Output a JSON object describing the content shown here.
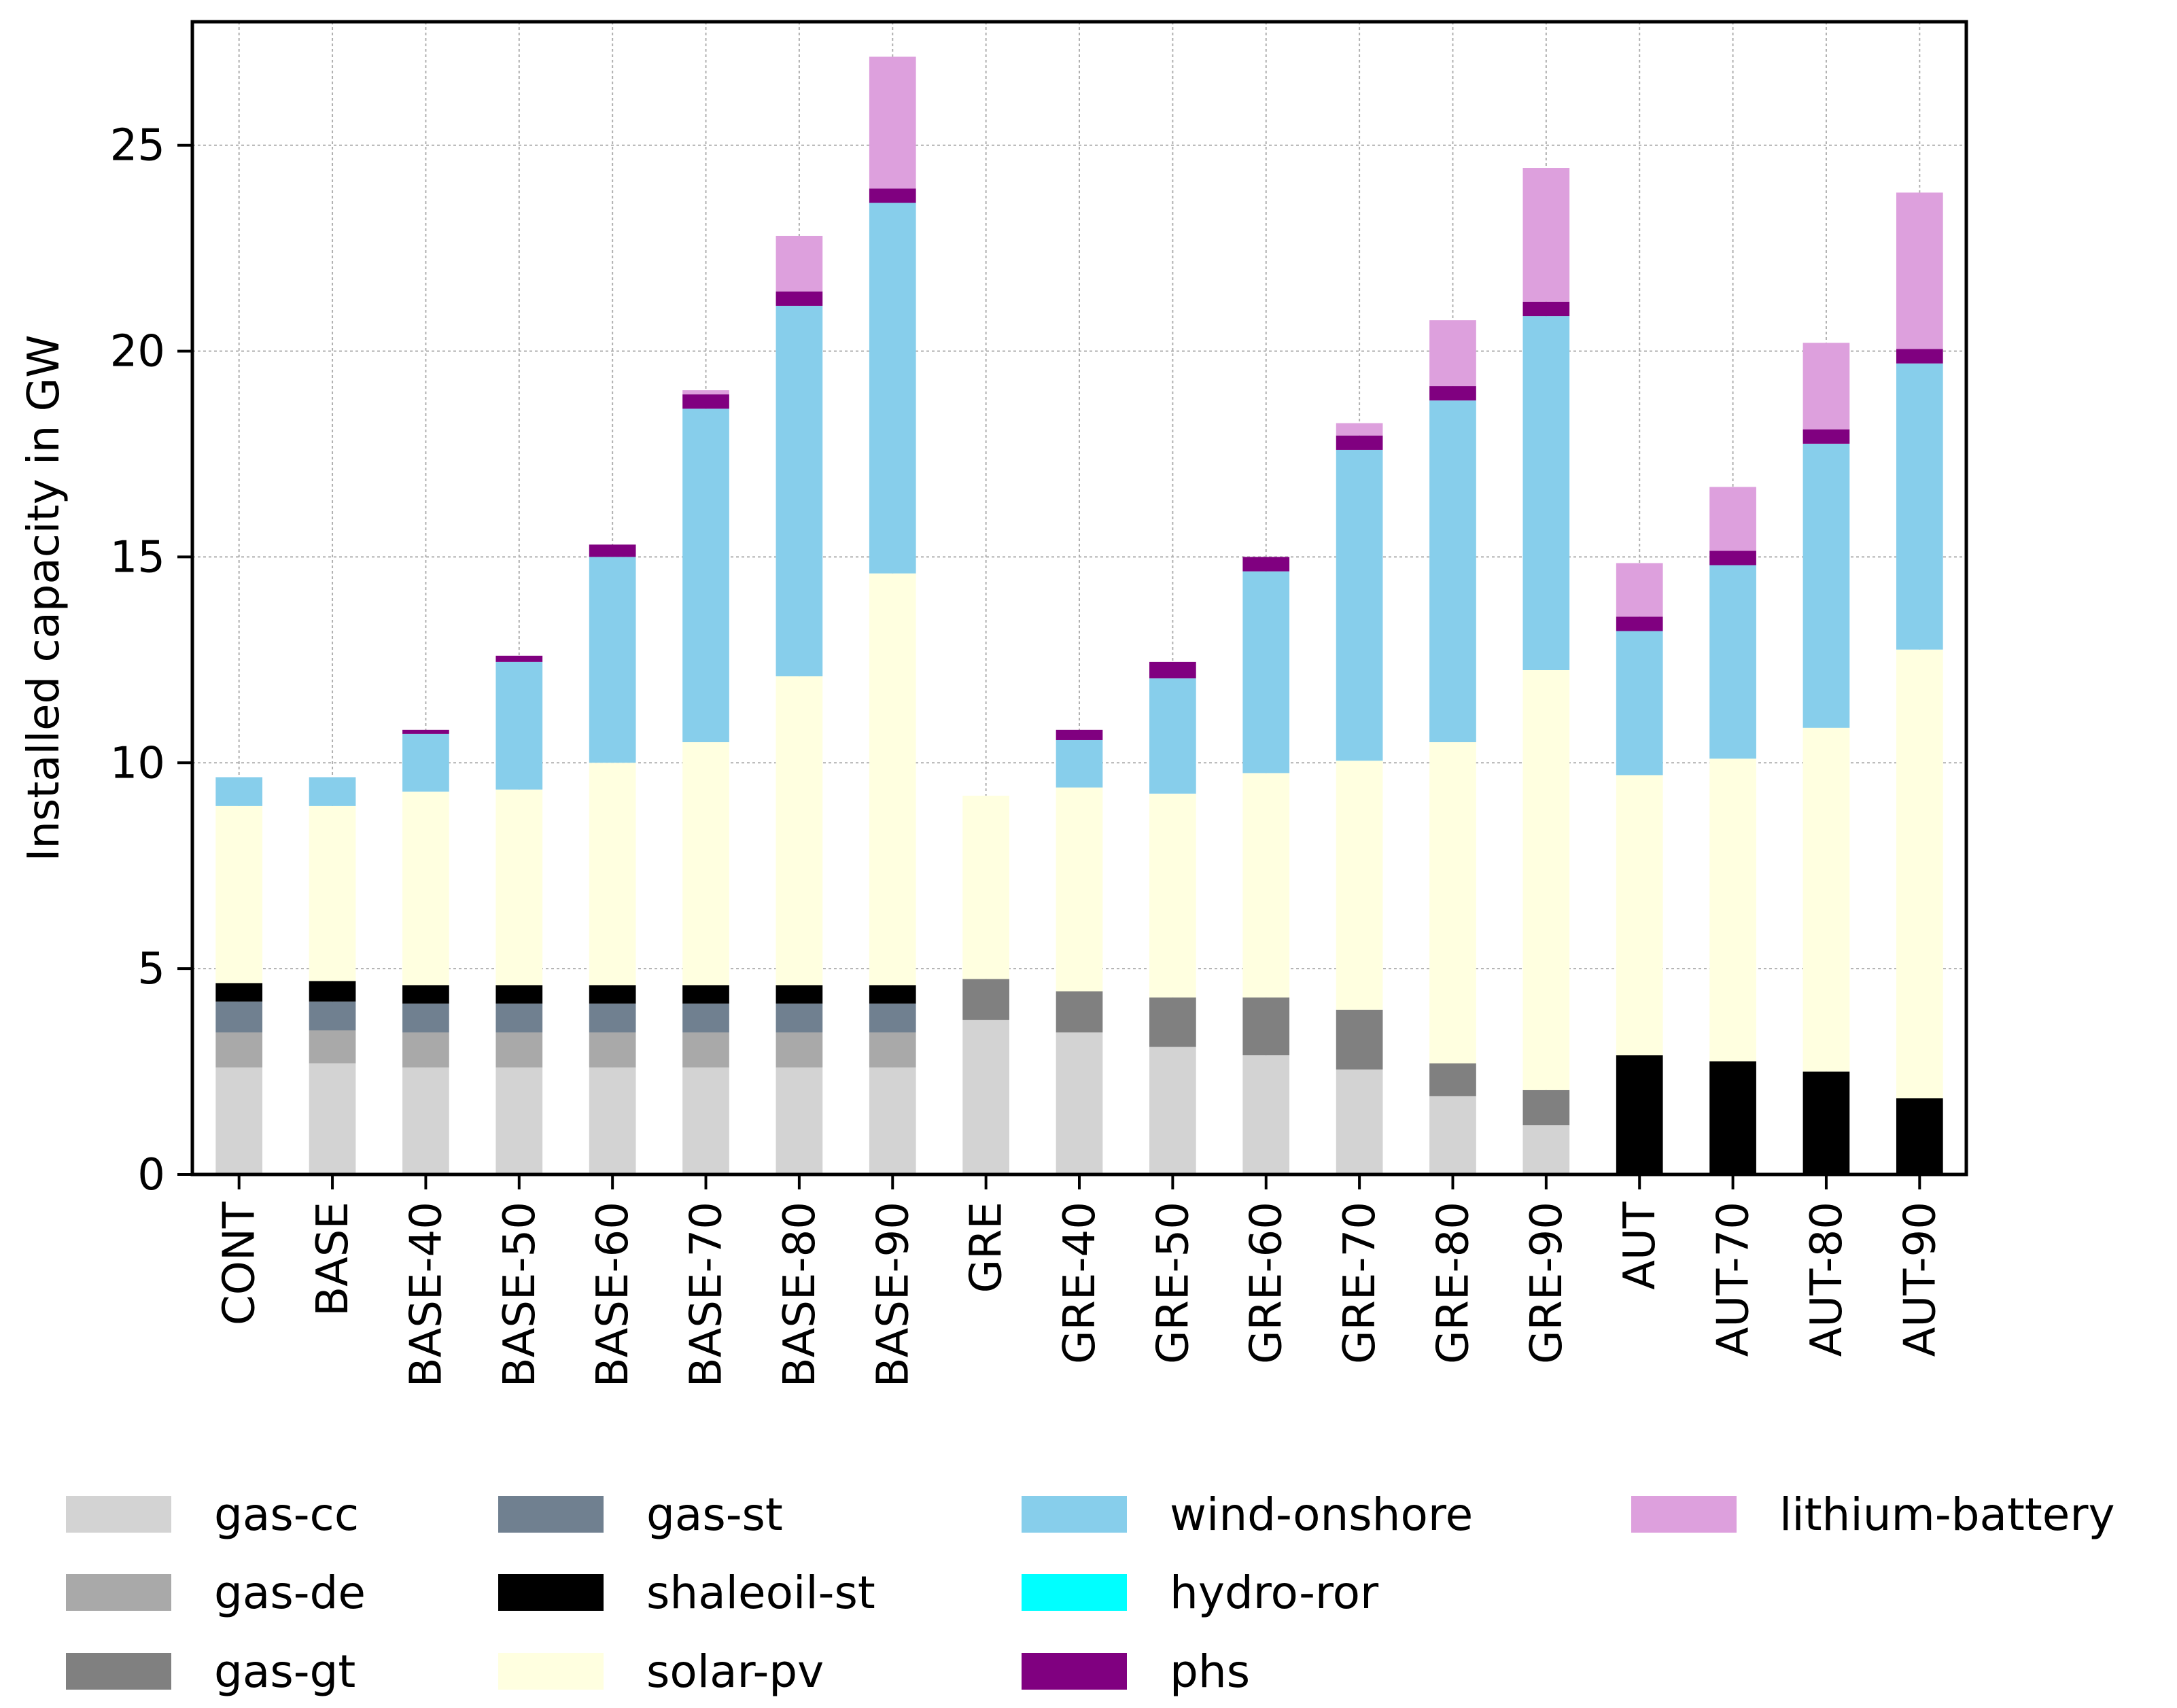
{
  "chart_data": {
    "type": "bar",
    "stacked": true,
    "title": "",
    "xlabel": "",
    "ylabel": "Installed capacity in GW",
    "ylim": [
      0,
      28
    ],
    "yticks": [
      0,
      5,
      10,
      15,
      20,
      25
    ],
    "grid": true,
    "legend_position": "bottom",
    "categories": [
      "CONT",
      "BASE",
      "BASE-40",
      "BASE-50",
      "BASE-60",
      "BASE-70",
      "BASE-80",
      "BASE-90",
      "GRE",
      "GRE-40",
      "GRE-50",
      "GRE-60",
      "GRE-70",
      "GRE-80",
      "GRE-90",
      "AUT",
      "AUT-70",
      "AUT-80",
      "AUT-90"
    ],
    "series": [
      {
        "name": "gas-cc",
        "color": "#d3d3d3",
        "values": [
          2.6,
          2.7,
          2.6,
          2.6,
          2.6,
          2.6,
          2.6,
          2.6,
          3.75,
          3.45,
          3.1,
          2.9,
          2.55,
          1.9,
          1.2,
          0,
          0,
          0,
          0
        ]
      },
      {
        "name": "gas-de",
        "color": "#a9a9a9",
        "values": [
          0.85,
          0.8,
          0.85,
          0.85,
          0.85,
          0.85,
          0.85,
          0.85,
          0,
          0,
          0,
          0,
          0,
          0,
          0,
          0,
          0,
          0,
          0
        ]
      },
      {
        "name": "gas-gt",
        "color": "#808080",
        "values": [
          0,
          0,
          0,
          0,
          0,
          0,
          0,
          0,
          1.0,
          1.0,
          1.2,
          1.4,
          1.45,
          0.8,
          0.85,
          0,
          0,
          0,
          0
        ]
      },
      {
        "name": "gas-st",
        "color": "#708090",
        "values": [
          0.75,
          0.7,
          0.7,
          0.7,
          0.7,
          0.7,
          0.7,
          0.7,
          0,
          0,
          0,
          0,
          0,
          0,
          0,
          0,
          0,
          0,
          0
        ]
      },
      {
        "name": "shaleoil-st",
        "color": "#000000",
        "values": [
          0.45,
          0.5,
          0.45,
          0.45,
          0.45,
          0.45,
          0.45,
          0.45,
          0,
          0,
          0,
          0,
          0,
          0,
          0,
          2.9,
          2.75,
          2.5,
          1.85
        ]
      },
      {
        "name": "solar-pv",
        "color": "#ffffe0",
        "values": [
          4.3,
          4.25,
          4.7,
          4.75,
          5.4,
          5.9,
          7.5,
          10.0,
          4.45,
          4.95,
          4.95,
          5.45,
          6.05,
          7.8,
          10.2,
          6.8,
          7.35,
          8.35,
          10.9
        ]
      },
      {
        "name": "wind-onshore",
        "color": "#87ceeb",
        "values": [
          0.7,
          0.7,
          1.4,
          3.1,
          5.0,
          8.1,
          9.0,
          9.0,
          0,
          1.15,
          2.8,
          4.9,
          7.55,
          8.3,
          8.6,
          3.5,
          4.7,
          6.9,
          6.95
        ]
      },
      {
        "name": "hydro-ror",
        "color": "#00ffff",
        "values": [
          0,
          0,
          0,
          0,
          0,
          0,
          0,
          0,
          0,
          0,
          0,
          0,
          0,
          0,
          0,
          0,
          0,
          0,
          0
        ]
      },
      {
        "name": "phs",
        "color": "#800080",
        "values": [
          0,
          0,
          0.1,
          0.15,
          0.3,
          0.35,
          0.35,
          0.35,
          0,
          0.25,
          0.4,
          0.35,
          0.35,
          0.35,
          0.35,
          0.35,
          0.35,
          0.35,
          0.35
        ]
      },
      {
        "name": "lithium-battery",
        "color": "#dda0dd",
        "values": [
          0,
          0,
          0,
          0,
          0,
          0.1,
          1.35,
          3.2,
          0,
          0,
          0,
          0,
          0.3,
          1.6,
          3.25,
          1.3,
          1.55,
          2.1,
          3.8
        ]
      }
    ]
  }
}
